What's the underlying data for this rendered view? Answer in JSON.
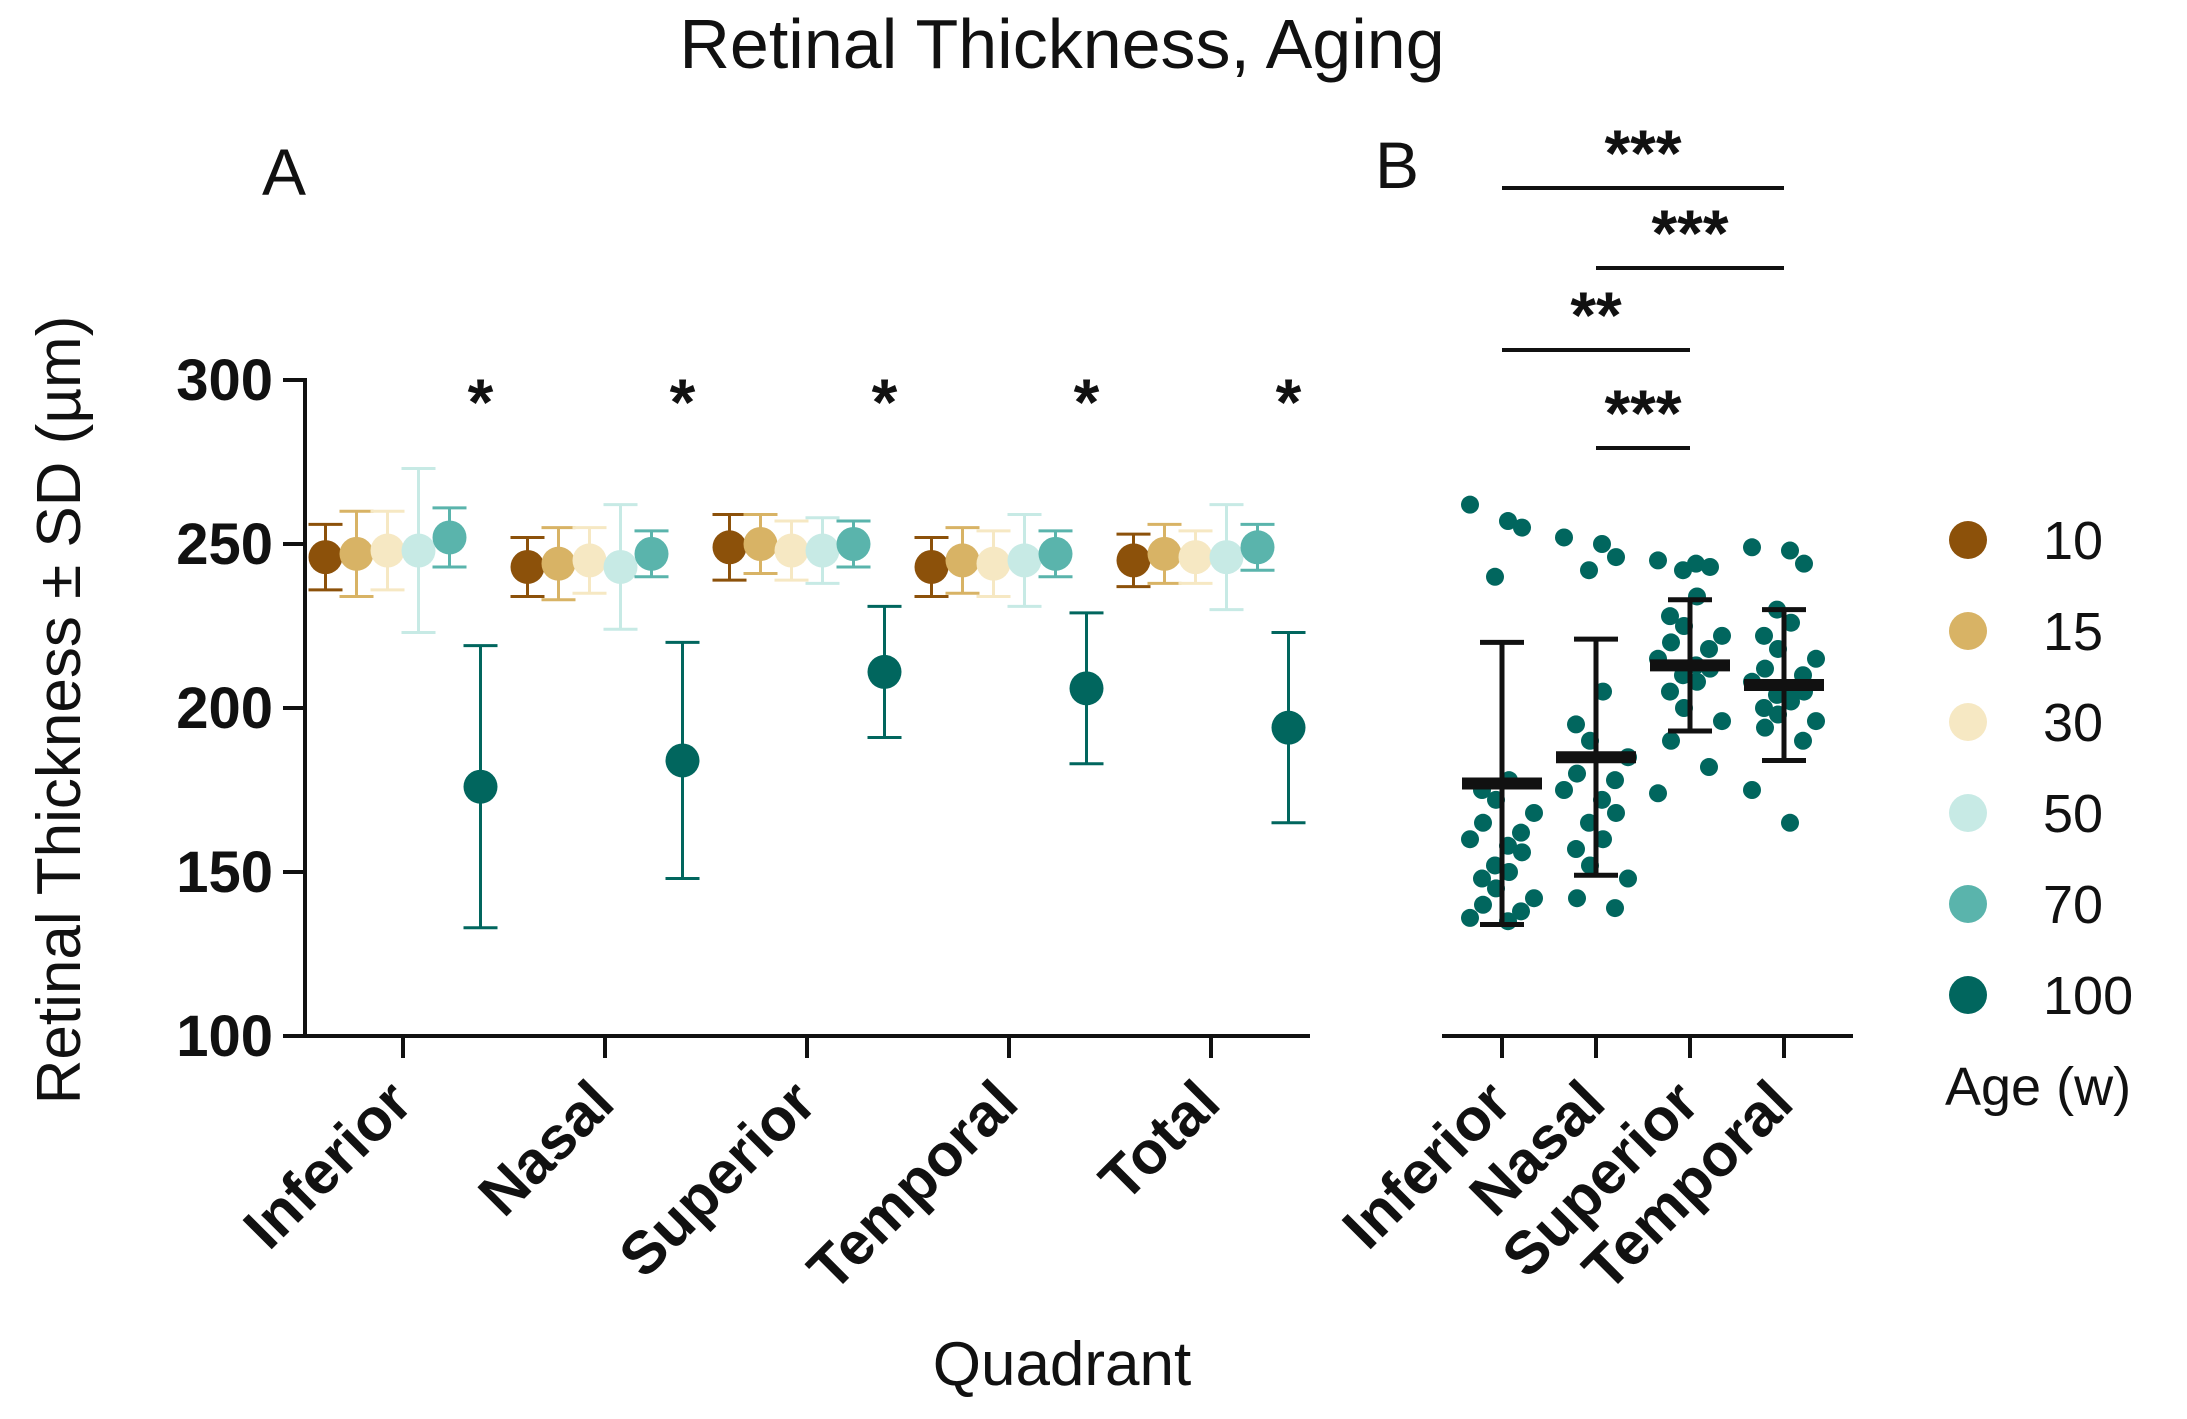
{
  "title": "Retinal Thickness, Aging",
  "colors": {
    "10": "#8c510a",
    "15": "#d8b365",
    "30": "#f6e8c3",
    "50": "#c7eae5",
    "70": "#5ab4ac",
    "100": "#01665e",
    "axis": "#111111"
  },
  "chart_data": [
    {
      "panel": "A",
      "type": "scatter",
      "title": "",
      "xlabel": "Quadrant",
      "ylabel": "Retinal Thickness ± SD (µm)",
      "ylim": [
        100,
        300
      ],
      "yticks": [
        "100",
        "150",
        "200",
        "250",
        "300"
      ],
      "categories": [
        "Inferior",
        "Nasal",
        "Superior",
        "Temporal",
        "Total"
      ],
      "significance": [
        "*",
        "*",
        "*",
        "*",
        "*"
      ],
      "series": [
        {
          "name": "10",
          "color_key": "10",
          "means": [
            246,
            243,
            249,
            243,
            245
          ],
          "sd": [
            10,
            9,
            10,
            9,
            8
          ]
        },
        {
          "name": "15",
          "color_key": "15",
          "means": [
            247,
            244,
            250,
            245,
            247
          ],
          "sd": [
            13,
            11,
            9,
            10,
            9
          ]
        },
        {
          "name": "30",
          "color_key": "30",
          "means": [
            248,
            245,
            248,
            244,
            246
          ],
          "sd": [
            12,
            10,
            9,
            10,
            8
          ]
        },
        {
          "name": "50",
          "color_key": "50",
          "means": [
            248,
            243,
            248,
            245,
            246
          ],
          "sd": [
            25,
            19,
            10,
            14,
            16
          ]
        },
        {
          "name": "70",
          "color_key": "70",
          "means": [
            252,
            247,
            250,
            247,
            249
          ],
          "sd": [
            9,
            7,
            7,
            7,
            7
          ]
        },
        {
          "name": "100",
          "color_key": "100",
          "means": [
            176,
            184,
            211,
            206,
            194
          ],
          "sd": [
            43,
            36,
            20,
            23,
            29
          ]
        }
      ]
    },
    {
      "panel": "B",
      "type": "scatter",
      "title": "",
      "xlabel": "",
      "ylabel": "",
      "ylim": [
        100,
        300
      ],
      "categories": [
        "Inferior",
        "Nasal",
        "Superior",
        "Temporal"
      ],
      "color_key": "100",
      "groups": [
        {
          "name": "Inferior",
          "mean": 177,
          "sd": 43,
          "points": [
            262,
            257,
            255,
            240,
            178,
            175,
            172,
            168,
            165,
            162,
            160,
            158,
            156,
            152,
            150,
            148,
            145,
            142,
            140,
            138,
            136,
            135
          ]
        },
        {
          "name": "Nasal",
          "mean": 185,
          "sd": 36,
          "points": [
            252,
            250,
            246,
            242,
            205,
            195,
            190,
            185,
            180,
            178,
            175,
            172,
            168,
            165,
            160,
            157,
            152,
            148,
            142,
            139
          ]
        },
        {
          "name": "Superior",
          "mean": 213,
          "sd": 20,
          "points": [
            245,
            244,
            243,
            242,
            234,
            228,
            225,
            222,
            220,
            218,
            215,
            213,
            212,
            210,
            208,
            205,
            200,
            196,
            190,
            182,
            174
          ]
        },
        {
          "name": "Temporal",
          "mean": 207,
          "sd": 23,
          "points": [
            249,
            248,
            244,
            230,
            226,
            222,
            218,
            215,
            212,
            210,
            208,
            206,
            205,
            204,
            202,
            200,
            198,
            196,
            194,
            190,
            175,
            165
          ]
        }
      ],
      "comparisons": [
        {
          "from": "Inferior",
          "to": "Temporal",
          "label": "***"
        },
        {
          "from": "Nasal",
          "to": "Temporal",
          "label": "***"
        },
        {
          "from": "Inferior",
          "to": "Superior",
          "label": "**"
        },
        {
          "from": "Nasal",
          "to": "Superior",
          "label": "***"
        }
      ]
    }
  ],
  "legend": {
    "title": "Age (w)",
    "entries": [
      {
        "label": "10",
        "color_key": "10"
      },
      {
        "label": "15",
        "color_key": "15"
      },
      {
        "label": "30",
        "color_key": "30"
      },
      {
        "label": "50",
        "color_key": "50"
      },
      {
        "label": "70",
        "color_key": "70"
      },
      {
        "label": "100",
        "color_key": "100"
      }
    ]
  }
}
